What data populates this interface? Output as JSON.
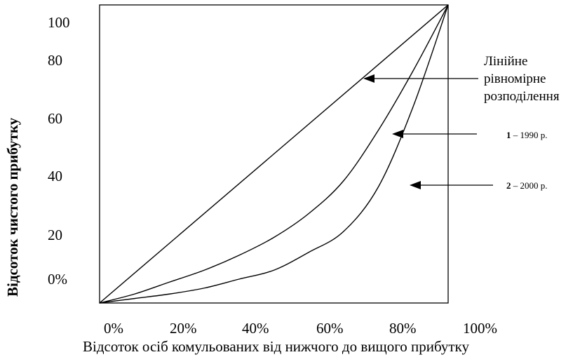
{
  "chart_data": {
    "type": "line",
    "xlabel": "Відсоток осіб комульованих від нижчого до вищого прибутку",
    "ylabel": "Відсоток чистого прибутку",
    "x_tick_labels": [
      "0%",
      "20%",
      "40%",
      "60%",
      "80%",
      "100%"
    ],
    "y_tick_labels": [
      "0%",
      "20",
      "40",
      "60",
      "80",
      "100"
    ],
    "xlim": [
      0,
      100
    ],
    "ylim": [
      0,
      100
    ],
    "grid": false,
    "series": [
      {
        "name": "Лінійне рівномірне розподілення",
        "x": [
          0,
          100
        ],
        "y": [
          0,
          100
        ]
      },
      {
        "name": "1 – 1990 р.",
        "x": [
          0,
          10,
          20,
          30,
          40,
          50,
          60,
          70,
          80,
          90,
          100
        ],
        "y": [
          0,
          3,
          7,
          11,
          16,
          22,
          30,
          41,
          58,
          78,
          100
        ]
      },
      {
        "name": "2 – 2000 р.",
        "x": [
          0,
          10,
          20,
          30,
          40,
          50,
          60,
          70,
          80,
          90,
          100
        ],
        "y": [
          0,
          1.5,
          3,
          5,
          8,
          11,
          17,
          24,
          39,
          66,
          100
        ]
      }
    ],
    "annotations": [
      {
        "lines": [
          "Лінійне",
          "рівномірне",
          "розподілення"
        ]
      },
      {
        "number": "1",
        "text": " – 1990 р."
      },
      {
        "number": "2",
        "text": " – 2000 р."
      }
    ]
  }
}
